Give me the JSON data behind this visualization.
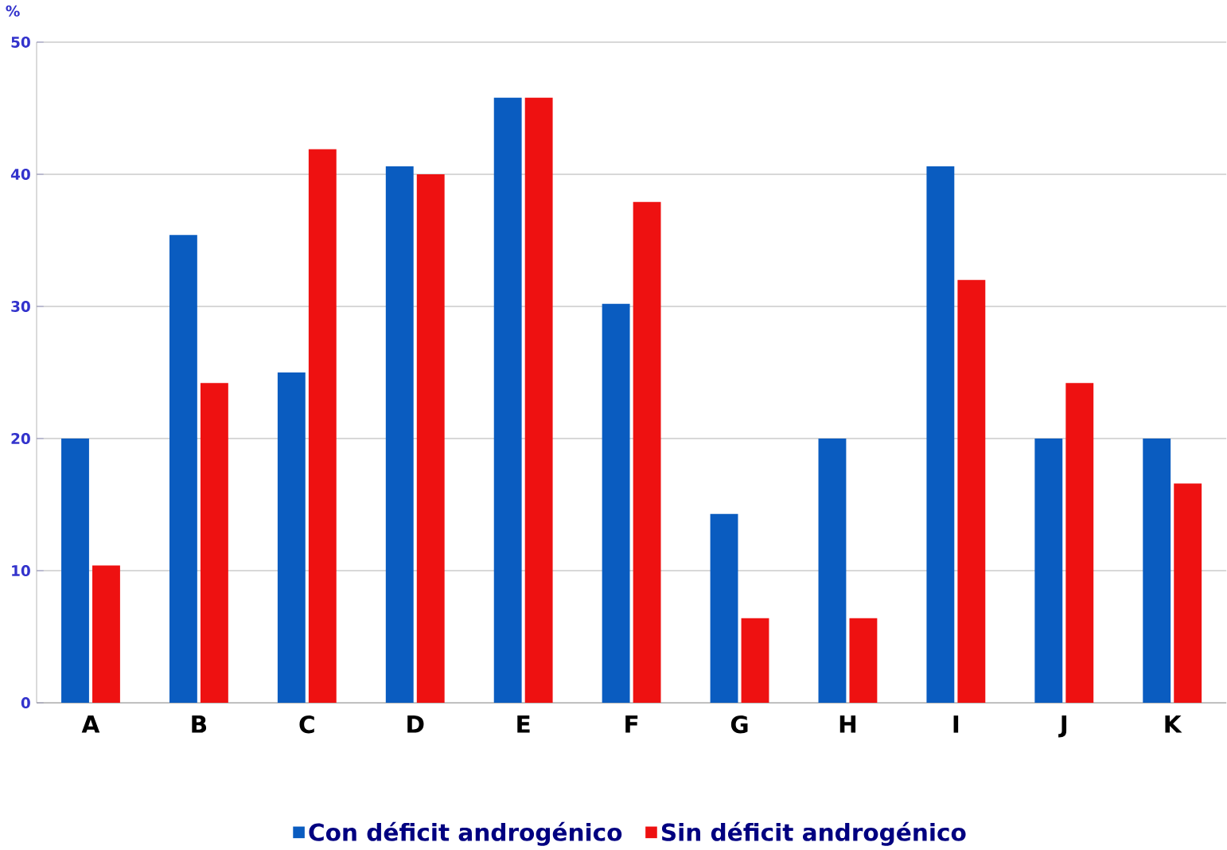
{
  "chart_data": {
    "type": "bar",
    "ylabel": "%",
    "categories": [
      "A",
      "B",
      "C",
      "D",
      "E",
      "F",
      "G",
      "H",
      "I",
      "J",
      "K"
    ],
    "series": [
      {
        "name": "Con déficit androgénico",
        "color": "#0a5cc0",
        "values": [
          20,
          35.4,
          25,
          40.6,
          45.8,
          30.2,
          14.3,
          20,
          40.6,
          20,
          20
        ]
      },
      {
        "name": "Sin déficit androgénico",
        "color": "#ee1111",
        "values": [
          10.4,
          24.2,
          41.9,
          40,
          45.8,
          37.9,
          6.4,
          6.4,
          32,
          24.2,
          16.6
        ]
      }
    ],
    "ylim": [
      0,
      50
    ],
    "yticks": [
      0,
      10,
      20,
      30,
      40,
      50
    ],
    "grid": "y",
    "legend": "bottom"
  }
}
